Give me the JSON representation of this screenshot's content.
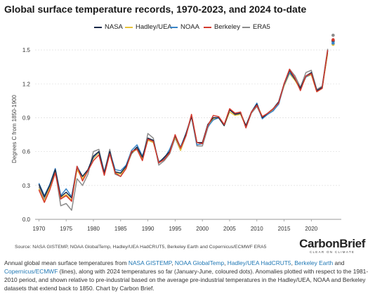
{
  "title": "Global surface temperature records, 1970-2023, and 2024 to-date",
  "chart_data": {
    "type": "line",
    "title": "Global surface temperature records, 1970-2023, and 2024 to-date",
    "ylabel": "Degrees C from 1850-1900",
    "xlabel": "",
    "xlim": [
      1969.3,
      2025.5
    ],
    "ylim": [
      0,
      1.6
    ],
    "x_ticks": [
      1970,
      1975,
      1980,
      1985,
      1990,
      1995,
      2000,
      2005,
      2010,
      2015,
      2020
    ],
    "y_ticks": [
      0.0,
      0.3,
      0.6,
      0.9,
      1.2,
      1.5
    ],
    "y_tick_labels": [
      "0.0",
      "0.3",
      "0.6",
      "0.9",
      "1.2",
      "1.5"
    ],
    "grid": "horizontal",
    "legend_position": "top-center",
    "x": [
      1970,
      1971,
      1972,
      1973,
      1974,
      1975,
      1976,
      1977,
      1978,
      1979,
      1980,
      1981,
      1982,
      1983,
      1984,
      1985,
      1986,
      1987,
      1988,
      1989,
      1990,
      1991,
      1992,
      1993,
      1994,
      1995,
      1996,
      1997,
      1998,
      1999,
      2000,
      2001,
      2002,
      2003,
      2004,
      2005,
      2006,
      2007,
      2008,
      2009,
      2010,
      2011,
      2012,
      2013,
      2014,
      2015,
      2016,
      2017,
      2018,
      2019,
      2020,
      2021,
      2022,
      2023
    ],
    "series": [
      {
        "name": "NASA",
        "color": "#1b2a4a",
        "values": [
          0.31,
          0.2,
          0.3,
          0.44,
          0.2,
          0.24,
          0.19,
          0.46,
          0.38,
          0.44,
          0.56,
          0.6,
          0.41,
          0.6,
          0.42,
          0.41,
          0.47,
          0.59,
          0.64,
          0.55,
          0.72,
          0.7,
          0.5,
          0.55,
          0.6,
          0.74,
          0.63,
          0.76,
          0.91,
          0.68,
          0.68,
          0.84,
          0.9,
          0.9,
          0.83,
          0.97,
          0.93,
          0.94,
          0.83,
          0.95,
          1.02,
          0.9,
          0.94,
          0.98,
          1.04,
          1.2,
          1.32,
          1.24,
          1.16,
          1.27,
          1.3,
          1.14,
          1.17,
          1.49
        ]
      },
      {
        "name": "Hadley/UEA",
        "color": "#e8c33a",
        "values": [
          0.27,
          0.16,
          0.28,
          0.42,
          0.19,
          0.22,
          0.17,
          0.44,
          0.36,
          0.44,
          0.54,
          0.59,
          0.41,
          0.58,
          0.41,
          0.4,
          0.46,
          0.59,
          0.62,
          0.54,
          0.7,
          0.68,
          0.51,
          0.54,
          0.6,
          0.73,
          0.61,
          0.75,
          0.92,
          0.68,
          0.67,
          0.82,
          0.89,
          0.9,
          0.83,
          0.95,
          0.92,
          0.93,
          0.82,
          0.95,
          1.02,
          0.91,
          0.93,
          0.98,
          1.03,
          1.18,
          1.29,
          1.23,
          1.15,
          1.26,
          1.28,
          1.13,
          1.16,
          1.47
        ]
      },
      {
        "name": "NOAA",
        "color": "#3a86c8",
        "values": [
          0.32,
          0.21,
          0.31,
          0.45,
          0.21,
          0.27,
          0.2,
          0.47,
          0.38,
          0.44,
          0.55,
          0.6,
          0.42,
          0.6,
          0.44,
          0.43,
          0.48,
          0.61,
          0.66,
          0.56,
          0.71,
          0.69,
          0.51,
          0.54,
          0.62,
          0.74,
          0.64,
          0.76,
          0.92,
          0.66,
          0.67,
          0.82,
          0.88,
          0.9,
          0.84,
          0.97,
          0.93,
          0.94,
          0.82,
          0.95,
          1.03,
          0.89,
          0.93,
          0.96,
          1.02,
          1.19,
          1.3,
          1.24,
          1.16,
          1.26,
          1.29,
          1.14,
          1.16,
          1.5
        ]
      },
      {
        "name": "Berkeley",
        "color": "#d43a2e",
        "values": [
          0.26,
          0.15,
          0.26,
          0.41,
          0.18,
          0.21,
          0.16,
          0.47,
          0.34,
          0.43,
          0.52,
          0.57,
          0.39,
          0.58,
          0.41,
          0.38,
          0.45,
          0.6,
          0.62,
          0.52,
          0.71,
          0.69,
          0.5,
          0.53,
          0.59,
          0.75,
          0.63,
          0.74,
          0.93,
          0.68,
          0.67,
          0.83,
          0.92,
          0.91,
          0.84,
          0.98,
          0.94,
          0.95,
          0.81,
          0.95,
          1.01,
          0.91,
          0.94,
          0.98,
          1.03,
          1.2,
          1.33,
          1.25,
          1.14,
          1.27,
          1.29,
          1.13,
          1.16,
          1.5
        ]
      },
      {
        "name": "ERA5",
        "color": "#8c8c8c",
        "values": [
          0.29,
          0.18,
          0.29,
          0.43,
          0.12,
          0.14,
          0.08,
          0.36,
          0.3,
          0.4,
          0.6,
          0.62,
          0.41,
          0.62,
          0.4,
          0.38,
          0.46,
          0.58,
          0.63,
          0.53,
          0.76,
          0.72,
          0.48,
          0.52,
          0.58,
          0.72,
          0.61,
          0.74,
          0.91,
          0.65,
          0.65,
          0.81,
          0.9,
          0.9,
          0.83,
          0.97,
          0.94,
          0.95,
          0.81,
          0.94,
          1.0,
          0.9,
          0.93,
          0.97,
          1.02,
          1.2,
          1.33,
          1.27,
          1.17,
          1.3,
          1.32,
          1.15,
          1.18,
          1.51
        ]
      }
    ],
    "dots_2024": {
      "x": 2024,
      "values": [
        {
          "name": "NASA",
          "color": "#1b2a4a",
          "value": 1.58
        },
        {
          "name": "Hadley/UEA",
          "color": "#e8c33a",
          "value": 1.55
        },
        {
          "name": "NOAA",
          "color": "#3a86c8",
          "value": 1.56
        },
        {
          "name": "Berkeley",
          "color": "#d43a2e",
          "value": 1.59
        },
        {
          "name": "ERA5",
          "color": "#8c8c8c",
          "value": 1.63
        }
      ]
    }
  },
  "source": "Source: NASA GISTEMP, NOAA GlobalTemp, Hadley/UEA HadCRUT5, Berkeley Earth and Copernicus/ECMWF ERA5",
  "brand": {
    "name": "CarbonBrief",
    "tagline": "CLEAR ON CLIMATE"
  },
  "caption": {
    "p1": "Annual global mean surface temperatures from ",
    "l1": "NASA GISTEMP",
    "p2": ", ",
    "l2": "NOAA GlobalTemp",
    "p3": ", ",
    "l3": "Hadley/UEA HadCRUT5",
    "p4": ", ",
    "l4": "Berkeley Earth",
    "p5": " and ",
    "l5": "Copernicus/ECMWF",
    "p6": " (lines), along with 2024 temperatures so far (January-June, coloured dots). Anomalies plotted with respect to the 1981-2010 period, and shown relative to pre-industrial based on the average pre-industrial temperatures in the Hadley/UEA, NOAA and Berkeley datasets that extend back to 1850. Chart by Carbon Brief."
  }
}
